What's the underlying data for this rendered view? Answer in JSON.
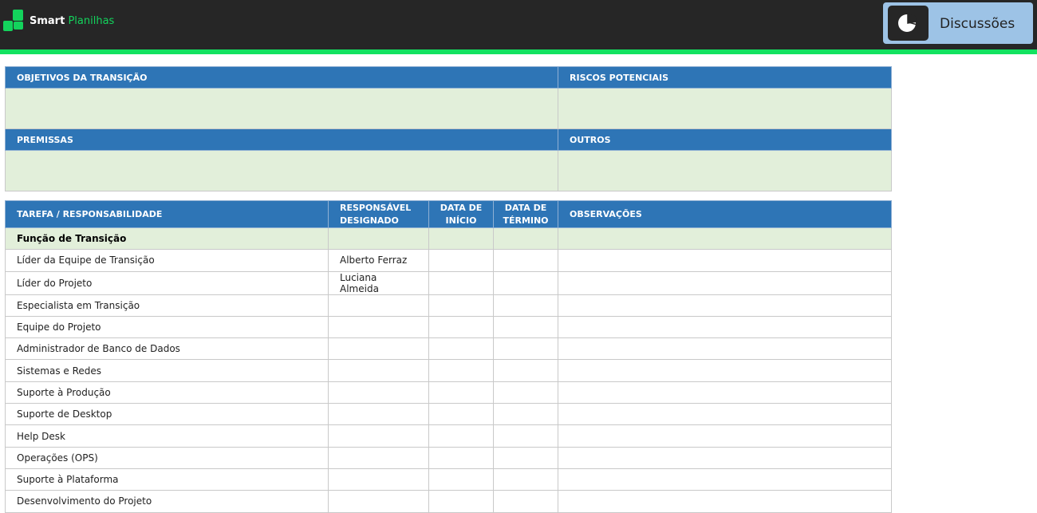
{
  "brand": {
    "name_bold": "Smart",
    "name_light": "Planilhas"
  },
  "discussions_button": {
    "label": "Discussões",
    "icon": "pie-chart-icon"
  },
  "colors": {
    "header_bg": "#262626",
    "accent_green": "#13e260",
    "table_header": "#2e75b6",
    "section_fill": "#e2efda",
    "button_bg": "#9dc3e6"
  },
  "summary": {
    "objectives": "OBJETIVOS DA TRANSIÇÃO",
    "risks": "RISCOS POTENCIAIS",
    "assumptions": "PREMISSAS",
    "others": "OUTROS"
  },
  "tasks": {
    "columns": [
      "TAREFA / RESPONSABILIDADE",
      "RESPONSÁVEL DESIGNADO",
      "DATA DE INÍCIO",
      "DATA DE TÉRMINO",
      "OBSERVAÇÕES"
    ],
    "section": "Função de Transição",
    "rows": [
      {
        "task": "Líder da Equipe de Transição",
        "owner": "Alberto Ferraz"
      },
      {
        "task": "Líder do Projeto",
        "owner": "Luciana Almeida"
      },
      {
        "task": "Especialista em Transição",
        "owner": ""
      },
      {
        "task": "Equipe do Projeto",
        "owner": ""
      },
      {
        "task": "Administrador de Banco de Dados",
        "owner": ""
      },
      {
        "task": "Sistemas e Redes",
        "owner": ""
      },
      {
        "task": "Suporte à Produção",
        "owner": ""
      },
      {
        "task": "Suporte de Desktop",
        "owner": ""
      },
      {
        "task": "Help Desk",
        "owner": ""
      },
      {
        "task": "Operações (OPS)",
        "owner": ""
      },
      {
        "task": "Suporte à Plataforma",
        "owner": ""
      },
      {
        "task": "Desenvolvimento do Projeto",
        "owner": ""
      }
    ]
  }
}
